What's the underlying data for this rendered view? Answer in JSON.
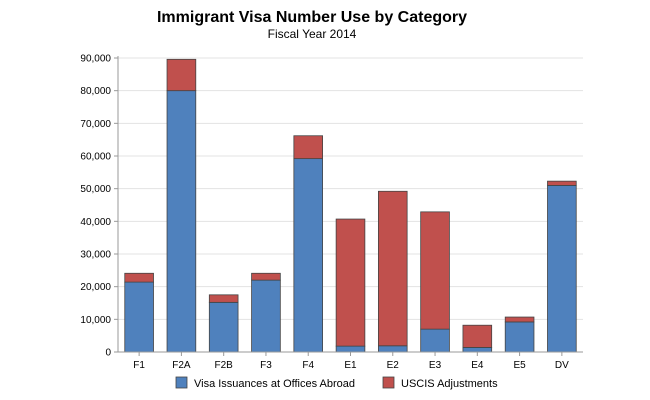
{
  "chart_data": {
    "type": "bar",
    "stacked": true,
    "title": "Immigrant Visa Number Use by Category",
    "subtitle": "Fiscal Year 2014",
    "categories": [
      "F1",
      "F2A",
      "F2B",
      "F3",
      "F4",
      "E1",
      "E2",
      "E3",
      "E4",
      "E5",
      "DV"
    ],
    "series": [
      {
        "name": "Visa Issuances at Offices Abroad",
        "color": "#4f81bd",
        "values": [
          21400,
          80000,
          15200,
          22000,
          59200,
          1800,
          1900,
          7000,
          1400,
          9200,
          51000
        ]
      },
      {
        "name": "USCIS Adjustments",
        "color": "#c0504d",
        "values": [
          2700,
          9600,
          2300,
          2100,
          7000,
          38900,
          47300,
          35900,
          6800,
          1500,
          1300
        ]
      }
    ],
    "ylim": [
      0,
      90000
    ],
    "yticks": [
      "0",
      "10,000",
      "20,000",
      "30,000",
      "40,000",
      "50,000",
      "60,000",
      "70,000",
      "80,000",
      "90,000"
    ],
    "ytick_values": [
      0,
      10000,
      20000,
      30000,
      40000,
      50000,
      60000,
      70000,
      80000,
      90000
    ],
    "grid": true,
    "legend_position": "bottom"
  }
}
